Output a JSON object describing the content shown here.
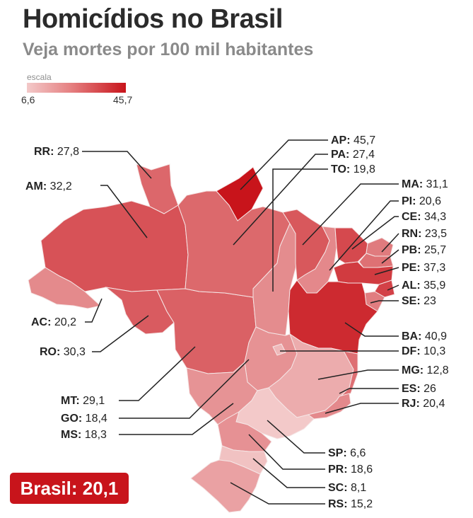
{
  "title": "Homicídios no Brasil",
  "subtitle": "Veja mortes por 100 mil habitantes",
  "scale": {
    "label": "escala",
    "min_label": "6,6",
    "max_label": "45,7",
    "min": 6.6,
    "max": 45.7,
    "color_low": "#f3c9c9",
    "color_high": "#c8141b"
  },
  "brasil": {
    "label": "Brasil:",
    "value": "20,1"
  },
  "chart_data": {
    "type": "choropleth",
    "title": "Homicídios no Brasil",
    "subtitle": "Veja mortes por 100 mil habitantes",
    "unit": "mortes por 100 mil habitantes",
    "national": {
      "label": "Brasil",
      "value": 20.1
    },
    "states": [
      {
        "abbr": "RR",
        "value": 27.8,
        "display": "27,8"
      },
      {
        "abbr": "AM",
        "value": 32.2,
        "display": "32,2"
      },
      {
        "abbr": "AC",
        "value": 20.2,
        "display": "20,2"
      },
      {
        "abbr": "RO",
        "value": 30.3,
        "display": "30,3"
      },
      {
        "abbr": "MT",
        "value": 29.1,
        "display": "29,1"
      },
      {
        "abbr": "GO",
        "value": 18.4,
        "display": "18,4"
      },
      {
        "abbr": "MS",
        "value": 18.3,
        "display": "18,3"
      },
      {
        "abbr": "AP",
        "value": 45.7,
        "display": "45,7"
      },
      {
        "abbr": "PA",
        "value": 27.4,
        "display": "27,4"
      },
      {
        "abbr": "TO",
        "value": 19.8,
        "display": "19,8"
      },
      {
        "abbr": "MA",
        "value": 31.1,
        "display": "31,1"
      },
      {
        "abbr": "PI",
        "value": 20.6,
        "display": "20,6"
      },
      {
        "abbr": "CE",
        "value": 34.3,
        "display": "34,3"
      },
      {
        "abbr": "RN",
        "value": 23.5,
        "display": "23,5"
      },
      {
        "abbr": "PB",
        "value": 25.7,
        "display": "25,7"
      },
      {
        "abbr": "PE",
        "value": 37.3,
        "display": "37,3"
      },
      {
        "abbr": "AL",
        "value": 35.9,
        "display": "35,9"
      },
      {
        "abbr": "SE",
        "value": 23.0,
        "display": "23"
      },
      {
        "abbr": "BA",
        "value": 40.9,
        "display": "40,9"
      },
      {
        "abbr": "DF",
        "value": 10.3,
        "display": "10,3"
      },
      {
        "abbr": "MG",
        "value": 12.8,
        "display": "12,8"
      },
      {
        "abbr": "ES",
        "value": 26.0,
        "display": "26"
      },
      {
        "abbr": "RJ",
        "value": 20.4,
        "display": "20,4"
      },
      {
        "abbr": "SP",
        "value": 6.6,
        "display": "6,6"
      },
      {
        "abbr": "PR",
        "value": 18.6,
        "display": "18,6"
      },
      {
        "abbr": "SC",
        "value": 8.1,
        "display": "8,1"
      },
      {
        "abbr": "RS",
        "value": 15.2,
        "display": "15,2"
      }
    ]
  }
}
